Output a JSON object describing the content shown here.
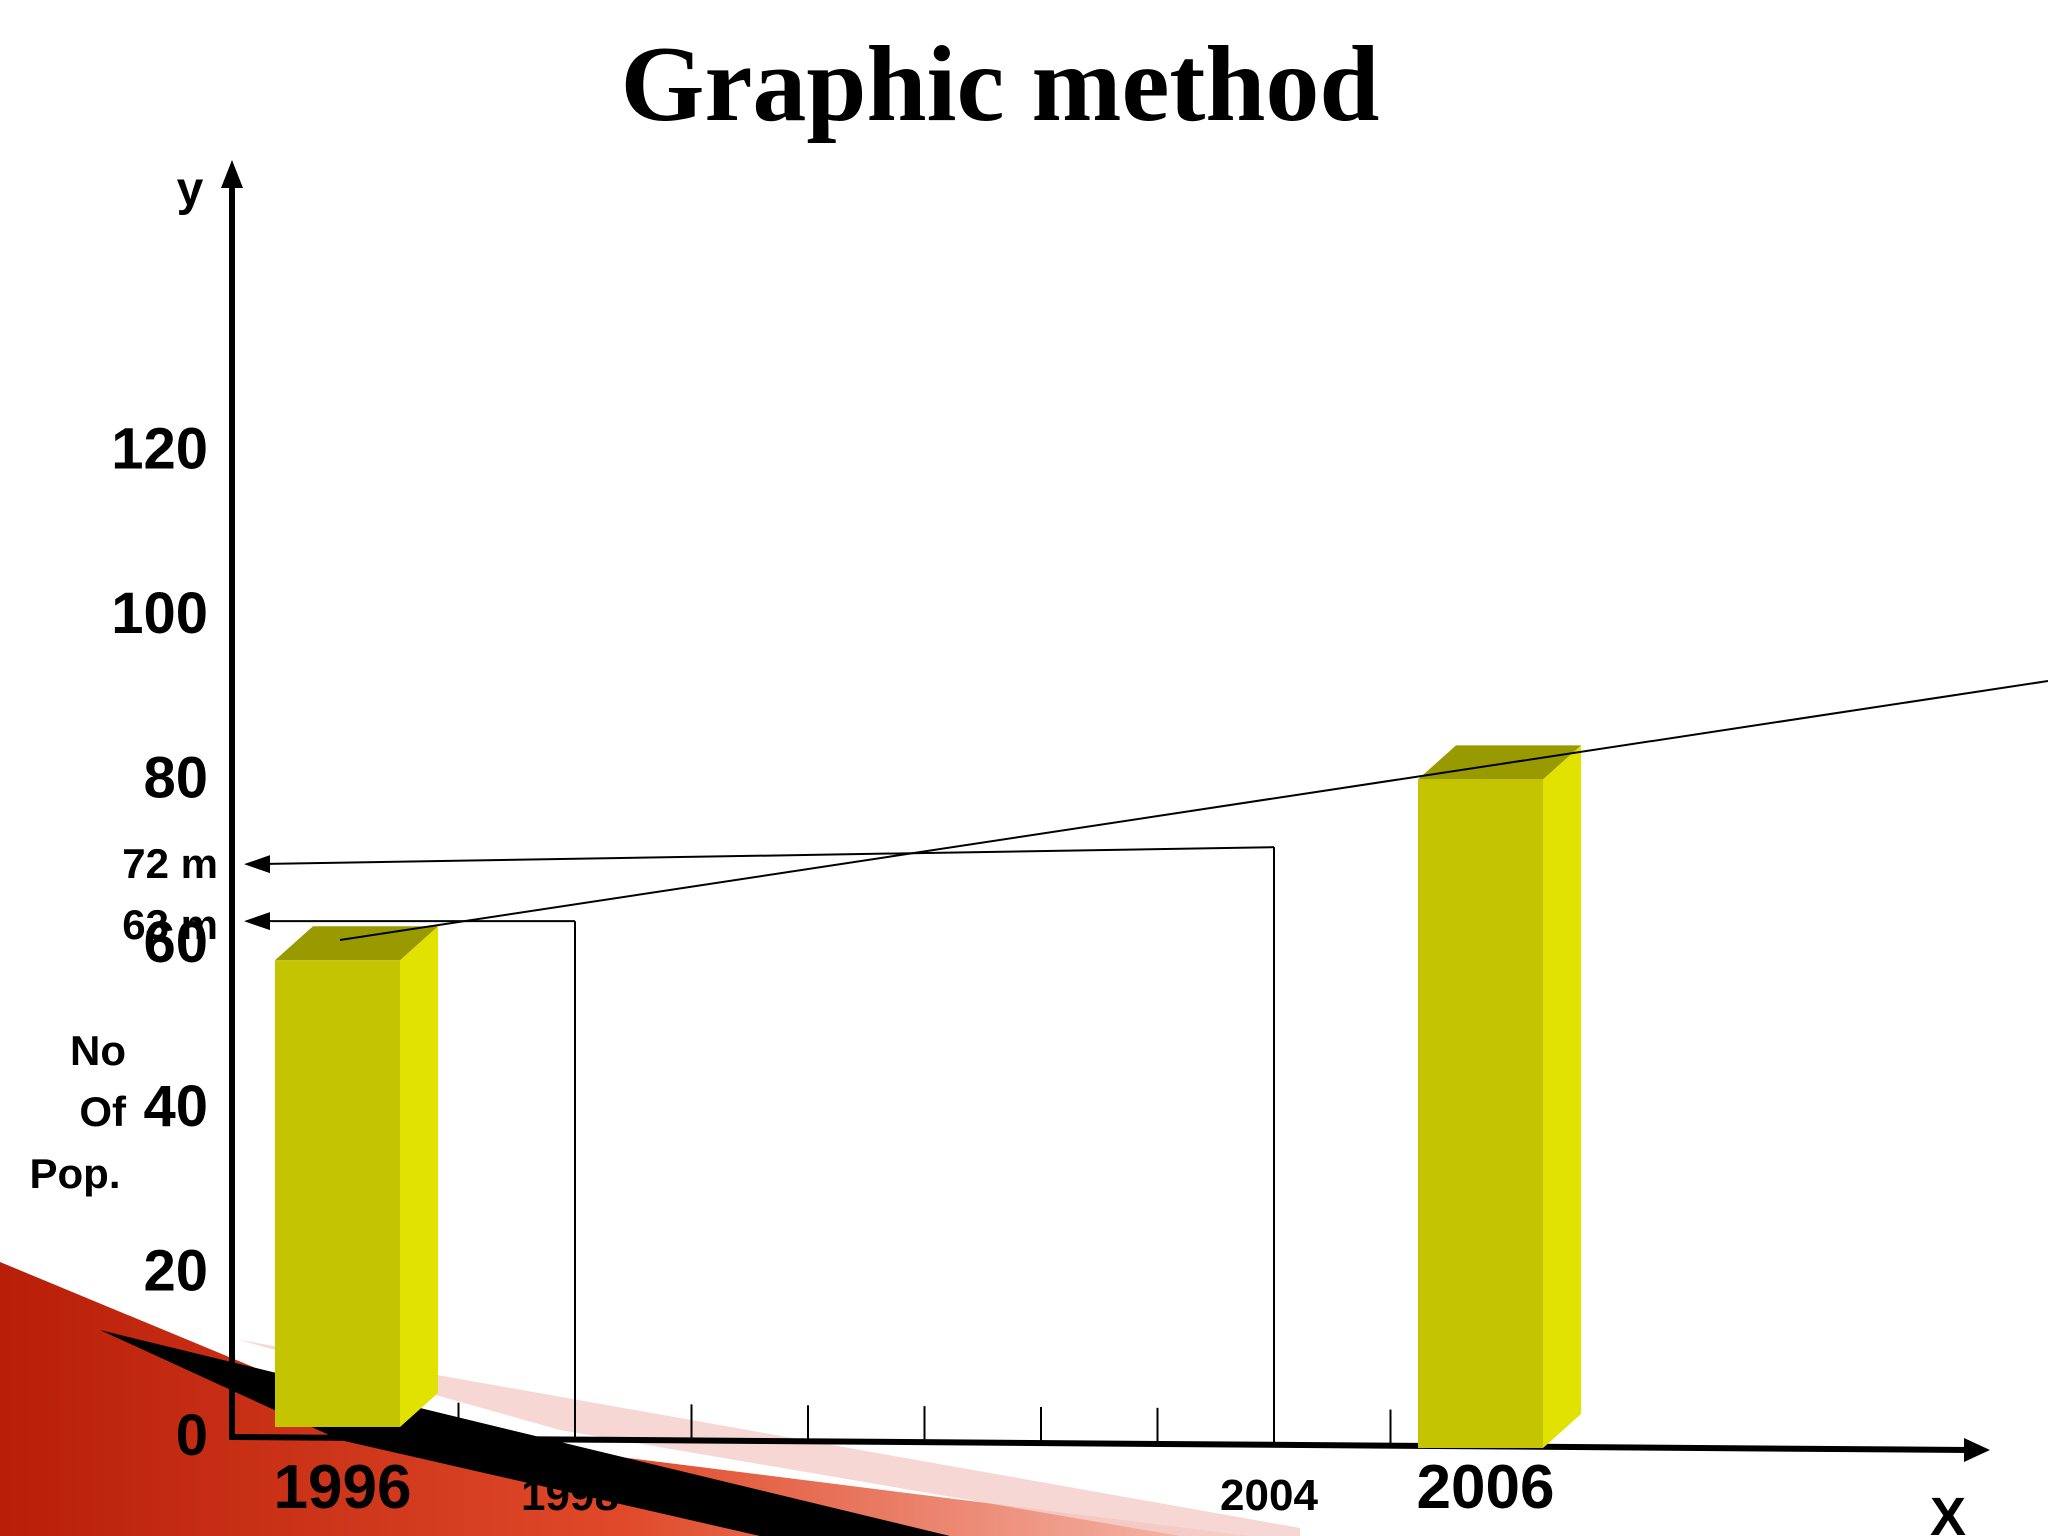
{
  "chart_data": {
    "type": "bar",
    "title": "Graphic method",
    "y_axis_name": "y",
    "x_axis_name": "X",
    "ylabel_lines": [
      "No",
      "Of",
      "Pop."
    ],
    "y_ticks": [
      "0",
      "20",
      "40",
      "60",
      "80",
      "100",
      "120"
    ],
    "ylim": [
      0,
      140
    ],
    "categories": [
      "1996",
      "2006"
    ],
    "values": [
      58,
      80
    ],
    "x_tick_labels": [
      "1998",
      "2004"
    ],
    "annotations": [
      {
        "year": "1998",
        "value": 63,
        "label": "63 m"
      },
      {
        "year": "2004",
        "value": 72,
        "label": "72 m"
      }
    ],
    "bar_colors": {
      "front": "#c4c400",
      "side": "#e2e200",
      "top": "#999900"
    },
    "grid": false,
    "legend": "none"
  }
}
